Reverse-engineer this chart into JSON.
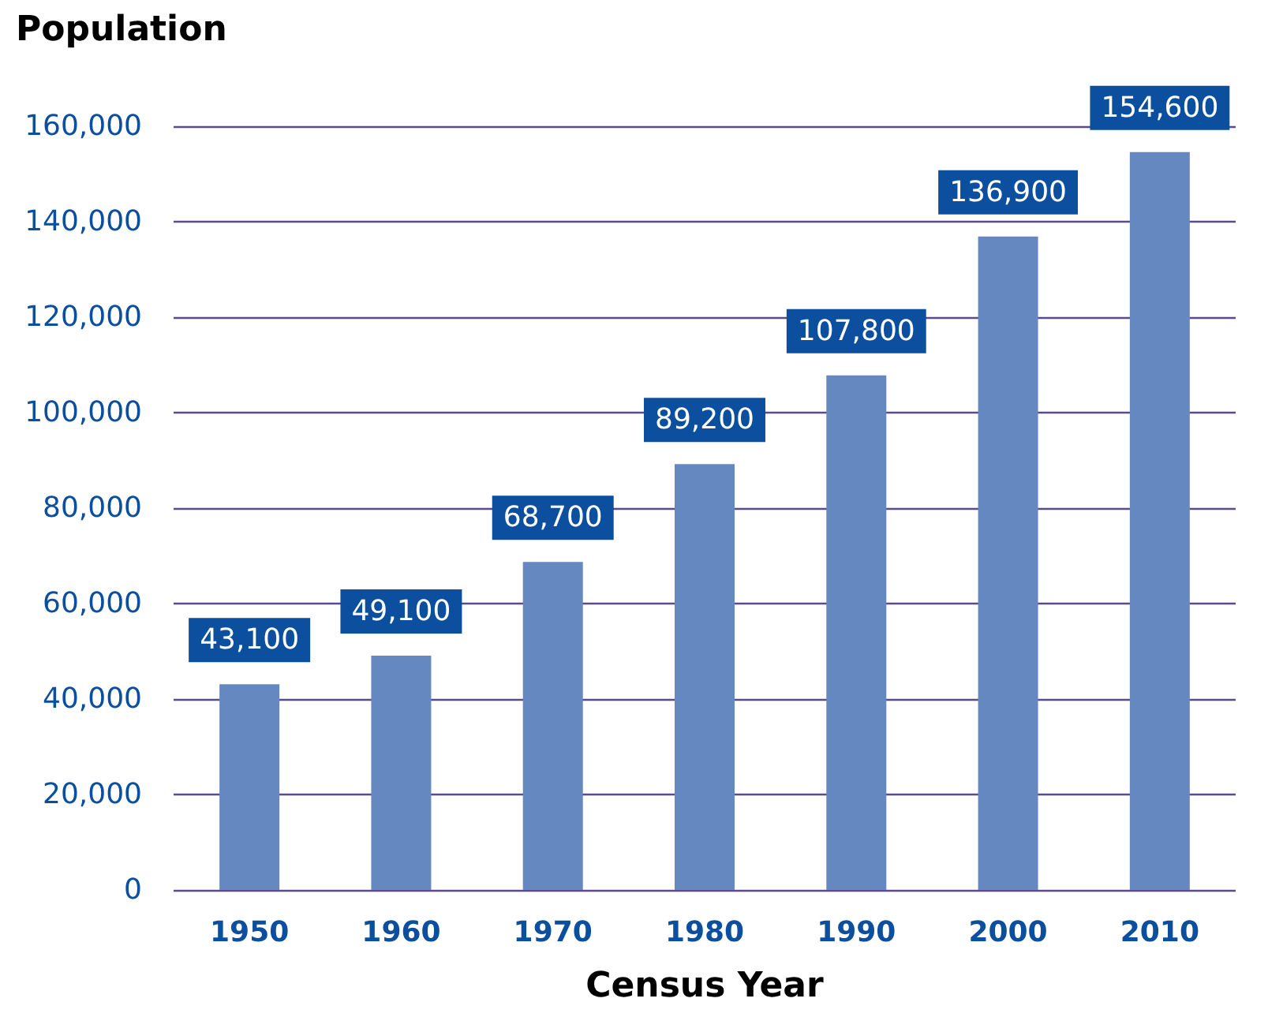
{
  "chart_data": {
    "type": "bar",
    "ylabel": "Population",
    "xlabel": "Census Year",
    "categories": [
      "1950",
      "1960",
      "1970",
      "1980",
      "1990",
      "2000",
      "2010"
    ],
    "values": [
      43100,
      49100,
      68700,
      89200,
      107800,
      136900,
      154600
    ],
    "value_labels": [
      "43,100",
      "49,100",
      "68,700",
      "89,200",
      "107,800",
      "136,900",
      "154,600"
    ],
    "color": "#6688c0",
    "ylim": [
      0,
      160000
    ],
    "yticks": [
      0,
      {
        "value": 20000,
        "label": "20,000"
      },
      {
        "value": 40000,
        "label": "40,000"
      },
      {
        "value": 60000,
        "label": "60,000"
      },
      {
        "value": 80000,
        "label": "80,000"
      },
      {
        "value": 100000,
        "label": "100,000"
      },
      {
        "value": 120000,
        "label": "120,000"
      },
      {
        "value": 140000,
        "label": "140,000"
      },
      {
        "value": 160000,
        "label": "160,000"
      }
    ],
    "grid": "y"
  }
}
